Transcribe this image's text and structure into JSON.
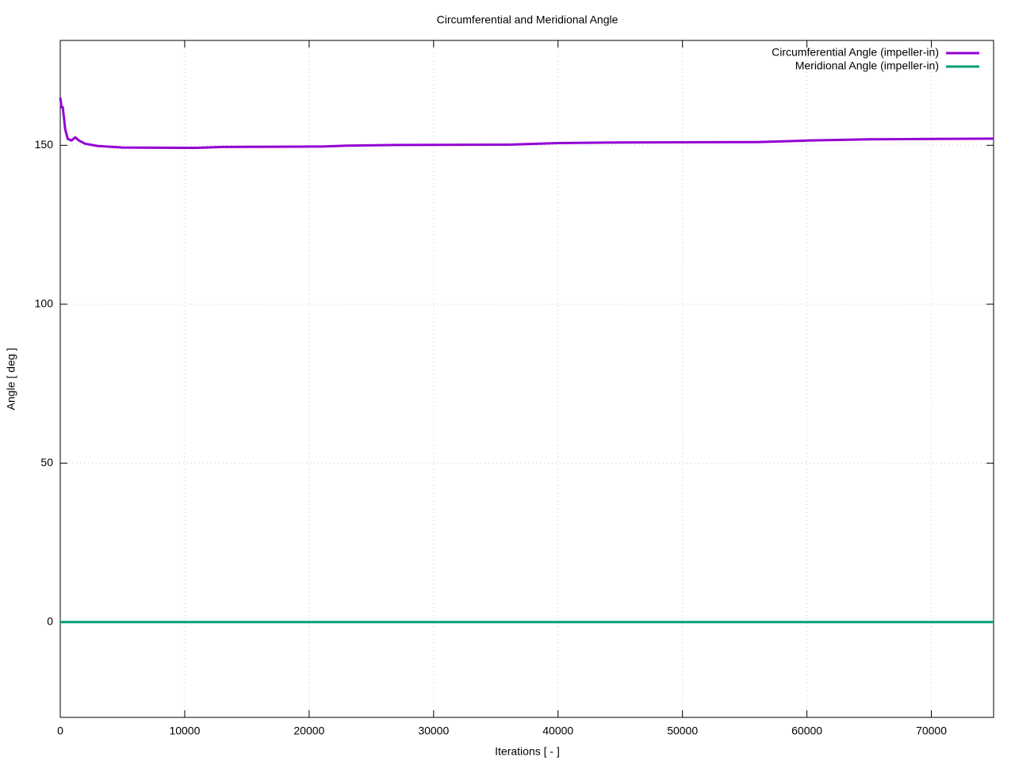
{
  "chart_data": {
    "type": "line",
    "title": "Circumferential and Meridional Angle",
    "x_label": "Iterations [ - ]",
    "y_label": "Angle [ deg ]",
    "x": [
      0,
      100,
      200,
      400,
      600,
      900,
      1200,
      1500,
      2000,
      3000,
      5000,
      10000,
      11000,
      13000,
      20000,
      21000,
      23000,
      27000,
      35000,
      36000,
      40000,
      45000,
      55000,
      56000,
      60000,
      65000,
      70000,
      75000
    ],
    "series": [
      {
        "name": "Circumferential Angle (impeller-in)",
        "color": "#9400d3",
        "values": [
          165,
          162,
          162,
          155,
          152,
          151.5,
          152.5,
          151.5,
          150.5,
          149.8,
          149.3,
          149.2,
          149.2,
          149.5,
          149.6,
          149.6,
          149.9,
          150.1,
          150.2,
          150.2,
          150.7,
          150.9,
          151,
          151,
          151.5,
          151.9,
          152,
          152.1
        ]
      },
      {
        "name": "Meridional Angle (impeller-in)",
        "color": "#009e73",
        "values": [
          0,
          0,
          0,
          0,
          0,
          0,
          0,
          0,
          0,
          0,
          0,
          0,
          0,
          0,
          0,
          0,
          0,
          0,
          0,
          0,
          0,
          0,
          0,
          0,
          0,
          0,
          0,
          0
        ]
      }
    ],
    "xlim": [
      0,
      75000
    ],
    "ylim": [
      -30,
      183
    ],
    "xticks": [
      0,
      10000,
      20000,
      30000,
      40000,
      50000,
      60000,
      70000
    ],
    "yticks": [
      0,
      50,
      100,
      150
    ],
    "grid": true,
    "legend": "top-right"
  }
}
